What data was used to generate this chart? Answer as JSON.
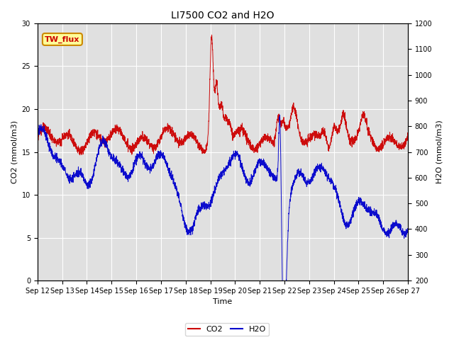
{
  "title": "LI7500 CO2 and H2O",
  "xlabel": "Time",
  "ylabel_left": "CO2 (mmol/m3)",
  "ylabel_right": "H2O (mmol/m3)",
  "ylim_left": [
    0,
    30
  ],
  "ylim_right": [
    200,
    1200
  ],
  "xtick_labels": [
    "Sep 12",
    "Sep 13",
    "Sep 14",
    "Sep 15",
    "Sep 16",
    "Sep 17",
    "Sep 18",
    "Sep 19",
    "Sep 20",
    "Sep 21",
    "Sep 22",
    "Sep 23",
    "Sep 24",
    "Sep 25",
    "Sep 26",
    "Sep 27"
  ],
  "co2_color": "#cc0000",
  "h2o_color": "#0000cc",
  "plot_bg_color": "#e0e0e0",
  "annotation_text": "TW_flux",
  "annotation_color": "#cc0000",
  "annotation_bg": "#ffff99",
  "annotation_edge": "#cc8800"
}
